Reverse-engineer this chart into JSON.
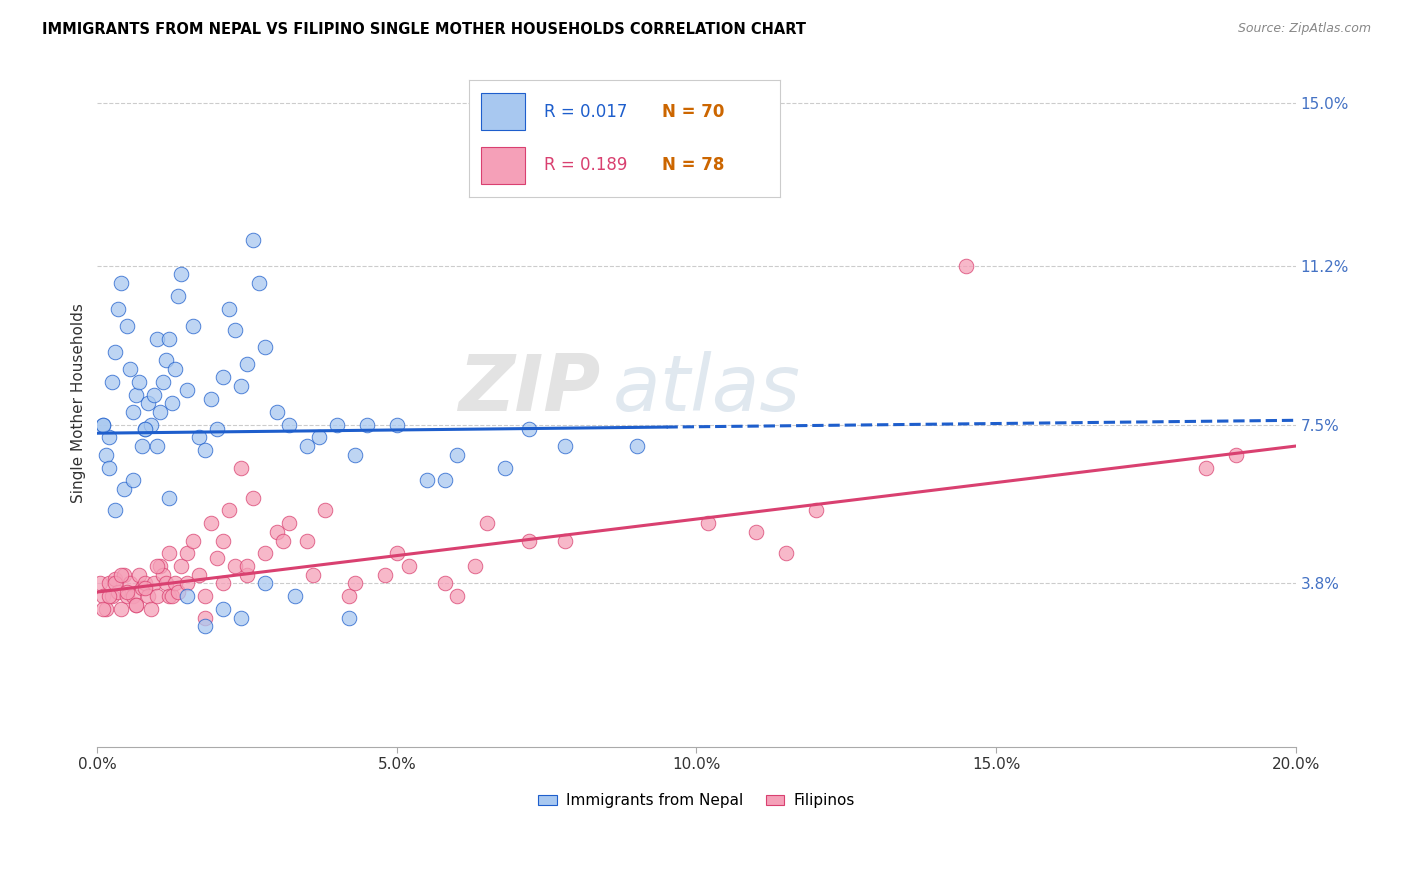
{
  "title": "IMMIGRANTS FROM NEPAL VS FILIPINO SINGLE MOTHER HOUSEHOLDS CORRELATION CHART",
  "source": "Source: ZipAtlas.com",
  "ylabel": "Single Mother Households",
  "yticks_labels": [
    "3.8%",
    "7.5%",
    "11.2%",
    "15.0%"
  ],
  "yticks_values": [
    3.8,
    7.5,
    11.2,
    15.0
  ],
  "xlim": [
    0.0,
    20.0
  ],
  "ylim": [
    0.0,
    16.0
  ],
  "legend_label1": "Immigrants from Nepal",
  "legend_label2": "Filipinos",
  "legend_R1": "R = 0.017",
  "legend_N1": "N = 70",
  "legend_R2": "R = 0.189",
  "legend_N2": "N = 78",
  "color_blue": "#A8C8F0",
  "color_pink": "#F5A0B8",
  "line_blue": "#1E5ECC",
  "line_pink": "#D94070",
  "watermark_zip": "ZIP",
  "watermark_atlas": "atlas",
  "nepal_x": [
    0.1,
    0.15,
    0.2,
    0.25,
    0.3,
    0.35,
    0.4,
    0.5,
    0.55,
    0.6,
    0.65,
    0.7,
    0.75,
    0.8,
    0.85,
    0.9,
    0.95,
    1.0,
    1.05,
    1.1,
    1.15,
    1.2,
    1.25,
    1.3,
    1.35,
    1.4,
    1.5,
    1.6,
    1.7,
    1.8,
    1.9,
    2.0,
    2.1,
    2.2,
    2.3,
    2.4,
    2.5,
    2.6,
    2.7,
    2.8,
    3.0,
    3.2,
    3.5,
    3.7,
    4.0,
    4.3,
    4.5,
    5.0,
    5.5,
    6.0,
    6.8,
    7.2,
    7.8,
    0.1,
    0.2,
    0.3,
    0.45,
    0.6,
    0.8,
    1.0,
    1.2,
    1.5,
    1.8,
    2.1,
    2.4,
    2.8,
    3.3,
    4.2,
    5.8,
    9.0
  ],
  "nepal_y": [
    7.5,
    6.8,
    7.2,
    8.5,
    9.2,
    10.2,
    10.8,
    9.8,
    8.8,
    7.8,
    8.2,
    8.5,
    7.0,
    7.4,
    8.0,
    7.5,
    8.2,
    9.5,
    7.8,
    8.5,
    9.0,
    9.5,
    8.0,
    8.8,
    10.5,
    11.0,
    8.3,
    9.8,
    7.2,
    6.9,
    8.1,
    7.4,
    8.6,
    10.2,
    9.7,
    8.4,
    8.9,
    11.8,
    10.8,
    9.3,
    7.8,
    7.5,
    7.0,
    7.2,
    7.5,
    6.8,
    7.5,
    7.5,
    6.2,
    6.8,
    6.5,
    7.4,
    7.0,
    7.5,
    6.5,
    5.5,
    6.0,
    6.2,
    7.4,
    7.0,
    5.8,
    3.5,
    2.8,
    3.2,
    3.0,
    3.8,
    3.5,
    3.0,
    6.2,
    7.0
  ],
  "filipino_x": [
    0.05,
    0.1,
    0.15,
    0.2,
    0.25,
    0.3,
    0.35,
    0.4,
    0.45,
    0.5,
    0.55,
    0.6,
    0.65,
    0.7,
    0.75,
    0.8,
    0.85,
    0.9,
    0.95,
    1.0,
    1.05,
    1.1,
    1.15,
    1.2,
    1.25,
    1.3,
    1.35,
    1.4,
    1.5,
    1.6,
    1.7,
    1.8,
    1.9,
    2.0,
    2.1,
    2.2,
    2.3,
    2.4,
    2.5,
    2.6,
    2.8,
    3.0,
    3.2,
    3.5,
    3.8,
    4.2,
    4.8,
    5.2,
    5.8,
    6.5,
    7.2,
    0.1,
    0.2,
    0.3,
    0.4,
    0.5,
    0.65,
    0.8,
    1.0,
    1.2,
    1.5,
    1.8,
    2.1,
    2.5,
    3.1,
    3.6,
    4.3,
    5.0,
    6.0,
    11.0,
    11.5,
    12.0,
    18.5,
    19.0,
    6.3,
    7.8,
    10.2,
    14.5
  ],
  "filipino_y": [
    3.8,
    3.5,
    3.2,
    3.8,
    3.5,
    3.9,
    3.6,
    3.2,
    4.0,
    3.5,
    3.8,
    3.5,
    3.3,
    4.0,
    3.7,
    3.8,
    3.5,
    3.2,
    3.8,
    3.5,
    4.2,
    4.0,
    3.8,
    3.5,
    3.5,
    3.8,
    3.6,
    4.2,
    4.5,
    4.8,
    4.0,
    3.5,
    5.2,
    4.4,
    4.8,
    5.5,
    4.2,
    6.5,
    4.0,
    5.8,
    4.5,
    5.0,
    5.2,
    4.8,
    5.5,
    3.5,
    4.0,
    4.2,
    3.8,
    5.2,
    4.8,
    3.2,
    3.5,
    3.8,
    4.0,
    3.6,
    3.3,
    3.7,
    4.2,
    4.5,
    3.8,
    3.0,
    3.8,
    4.2,
    4.8,
    4.0,
    3.8,
    4.5,
    3.5,
    5.0,
    4.5,
    5.5,
    6.5,
    6.8,
    4.2,
    4.8,
    5.2,
    11.2
  ],
  "nepal_line_xend": 9.5,
  "nepal_line_y_at0": 7.3,
  "nepal_line_y_at20": 7.6,
  "filipino_line_y_at0": 3.6,
  "filipino_line_y_at20": 7.0
}
